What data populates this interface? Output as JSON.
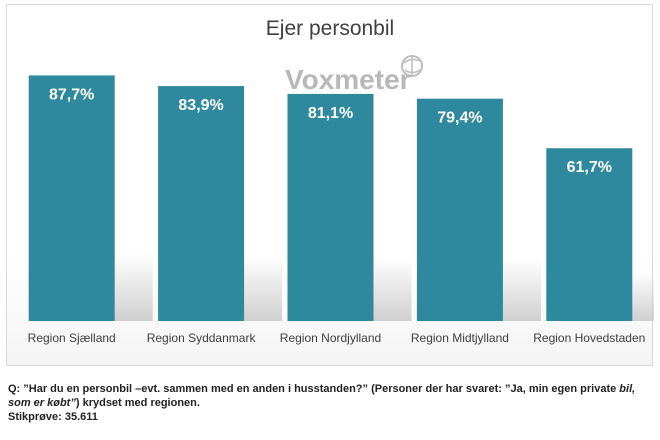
{
  "colors": {
    "bar": "#2e889e",
    "bar_label": "#ffffff",
    "title": "#404040",
    "tick": "#404040",
    "logo": "#b8b8b8"
  },
  "logo": {
    "text": "Voxmeter"
  },
  "footnote": {
    "q_prefix": "Q: ”Har du en personbil –evt. sammen med en anden i husstanden?” (Personer der har svaret: ”Ja, min egen private",
    "q_italic": "bil, som er købt”",
    "q_suffix": ") krydset med regionen.",
    "sample": "Stikprøve: 35.611"
  },
  "chart_data": {
    "type": "bar",
    "title": "Ejer personbil",
    "categories": [
      "Region Sjælland",
      "Region Syddanmark",
      "Region Nordjylland",
      "Region Midtjylland",
      "Region Hovedstaden"
    ],
    "values": [
      87.7,
      83.9,
      81.1,
      79.4,
      61.7
    ],
    "data_labels": [
      "87,7%",
      "83,9%",
      "81,1%",
      "79,4%",
      "61,7%"
    ],
    "ylim": [
      0,
      100
    ],
    "grid": false,
    "legend": "none"
  }
}
